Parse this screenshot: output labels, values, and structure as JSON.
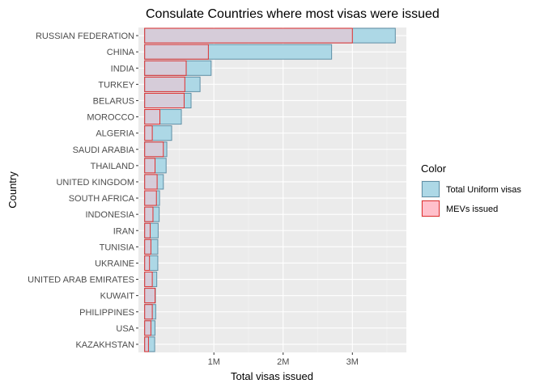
{
  "chart_data": {
    "type": "bar",
    "orientation": "horizontal",
    "title": "Consulate Countries where most visas were issued",
    "xlabel": "Total visas issued",
    "ylabel": "Country",
    "xlim": [
      -90000,
      3780000
    ],
    "x_ticks": [
      1000000,
      2000000,
      3000000
    ],
    "x_tick_labels": [
      "1M",
      "2M",
      "3M"
    ],
    "grid": true,
    "legend_position": "right",
    "legend_title": "Color",
    "categories": [
      "RUSSIAN FEDERATION",
      "CHINA",
      "INDIA",
      "TURKEY",
      "BELARUS",
      "MOROCCO",
      "ALGERIA",
      "SAUDI ARABIA",
      "THAILAND",
      "UNITED KINGDOM",
      "SOUTH AFRICA",
      "INDONESIA",
      "IRAN",
      "TUNISIA",
      "UKRAINE",
      "UNITED ARAB EMIRATES",
      "KUWAIT",
      "PHILIPPINES",
      "USA",
      "KAZAKHSTAN"
    ],
    "series": [
      {
        "name": "Total Uniform visas",
        "fill": "#add8e6",
        "stroke": "#5f8fa5",
        "values": [
          3620000,
          2700000,
          960000,
          800000,
          670000,
          530000,
          390000,
          320000,
          310000,
          270000,
          215000,
          210000,
          195000,
          190000,
          190000,
          175000,
          155000,
          160000,
          150000,
          145000
        ]
      },
      {
        "name": "MEVs issued",
        "fill": "#ffc0cb",
        "stroke": "#e03030",
        "values": [
          3000000,
          920000,
          600000,
          580000,
          570000,
          220000,
          110000,
          270000,
          150000,
          180000,
          170000,
          120000,
          80000,
          90000,
          70000,
          110000,
          150000,
          110000,
          90000,
          55000
        ]
      }
    ]
  }
}
